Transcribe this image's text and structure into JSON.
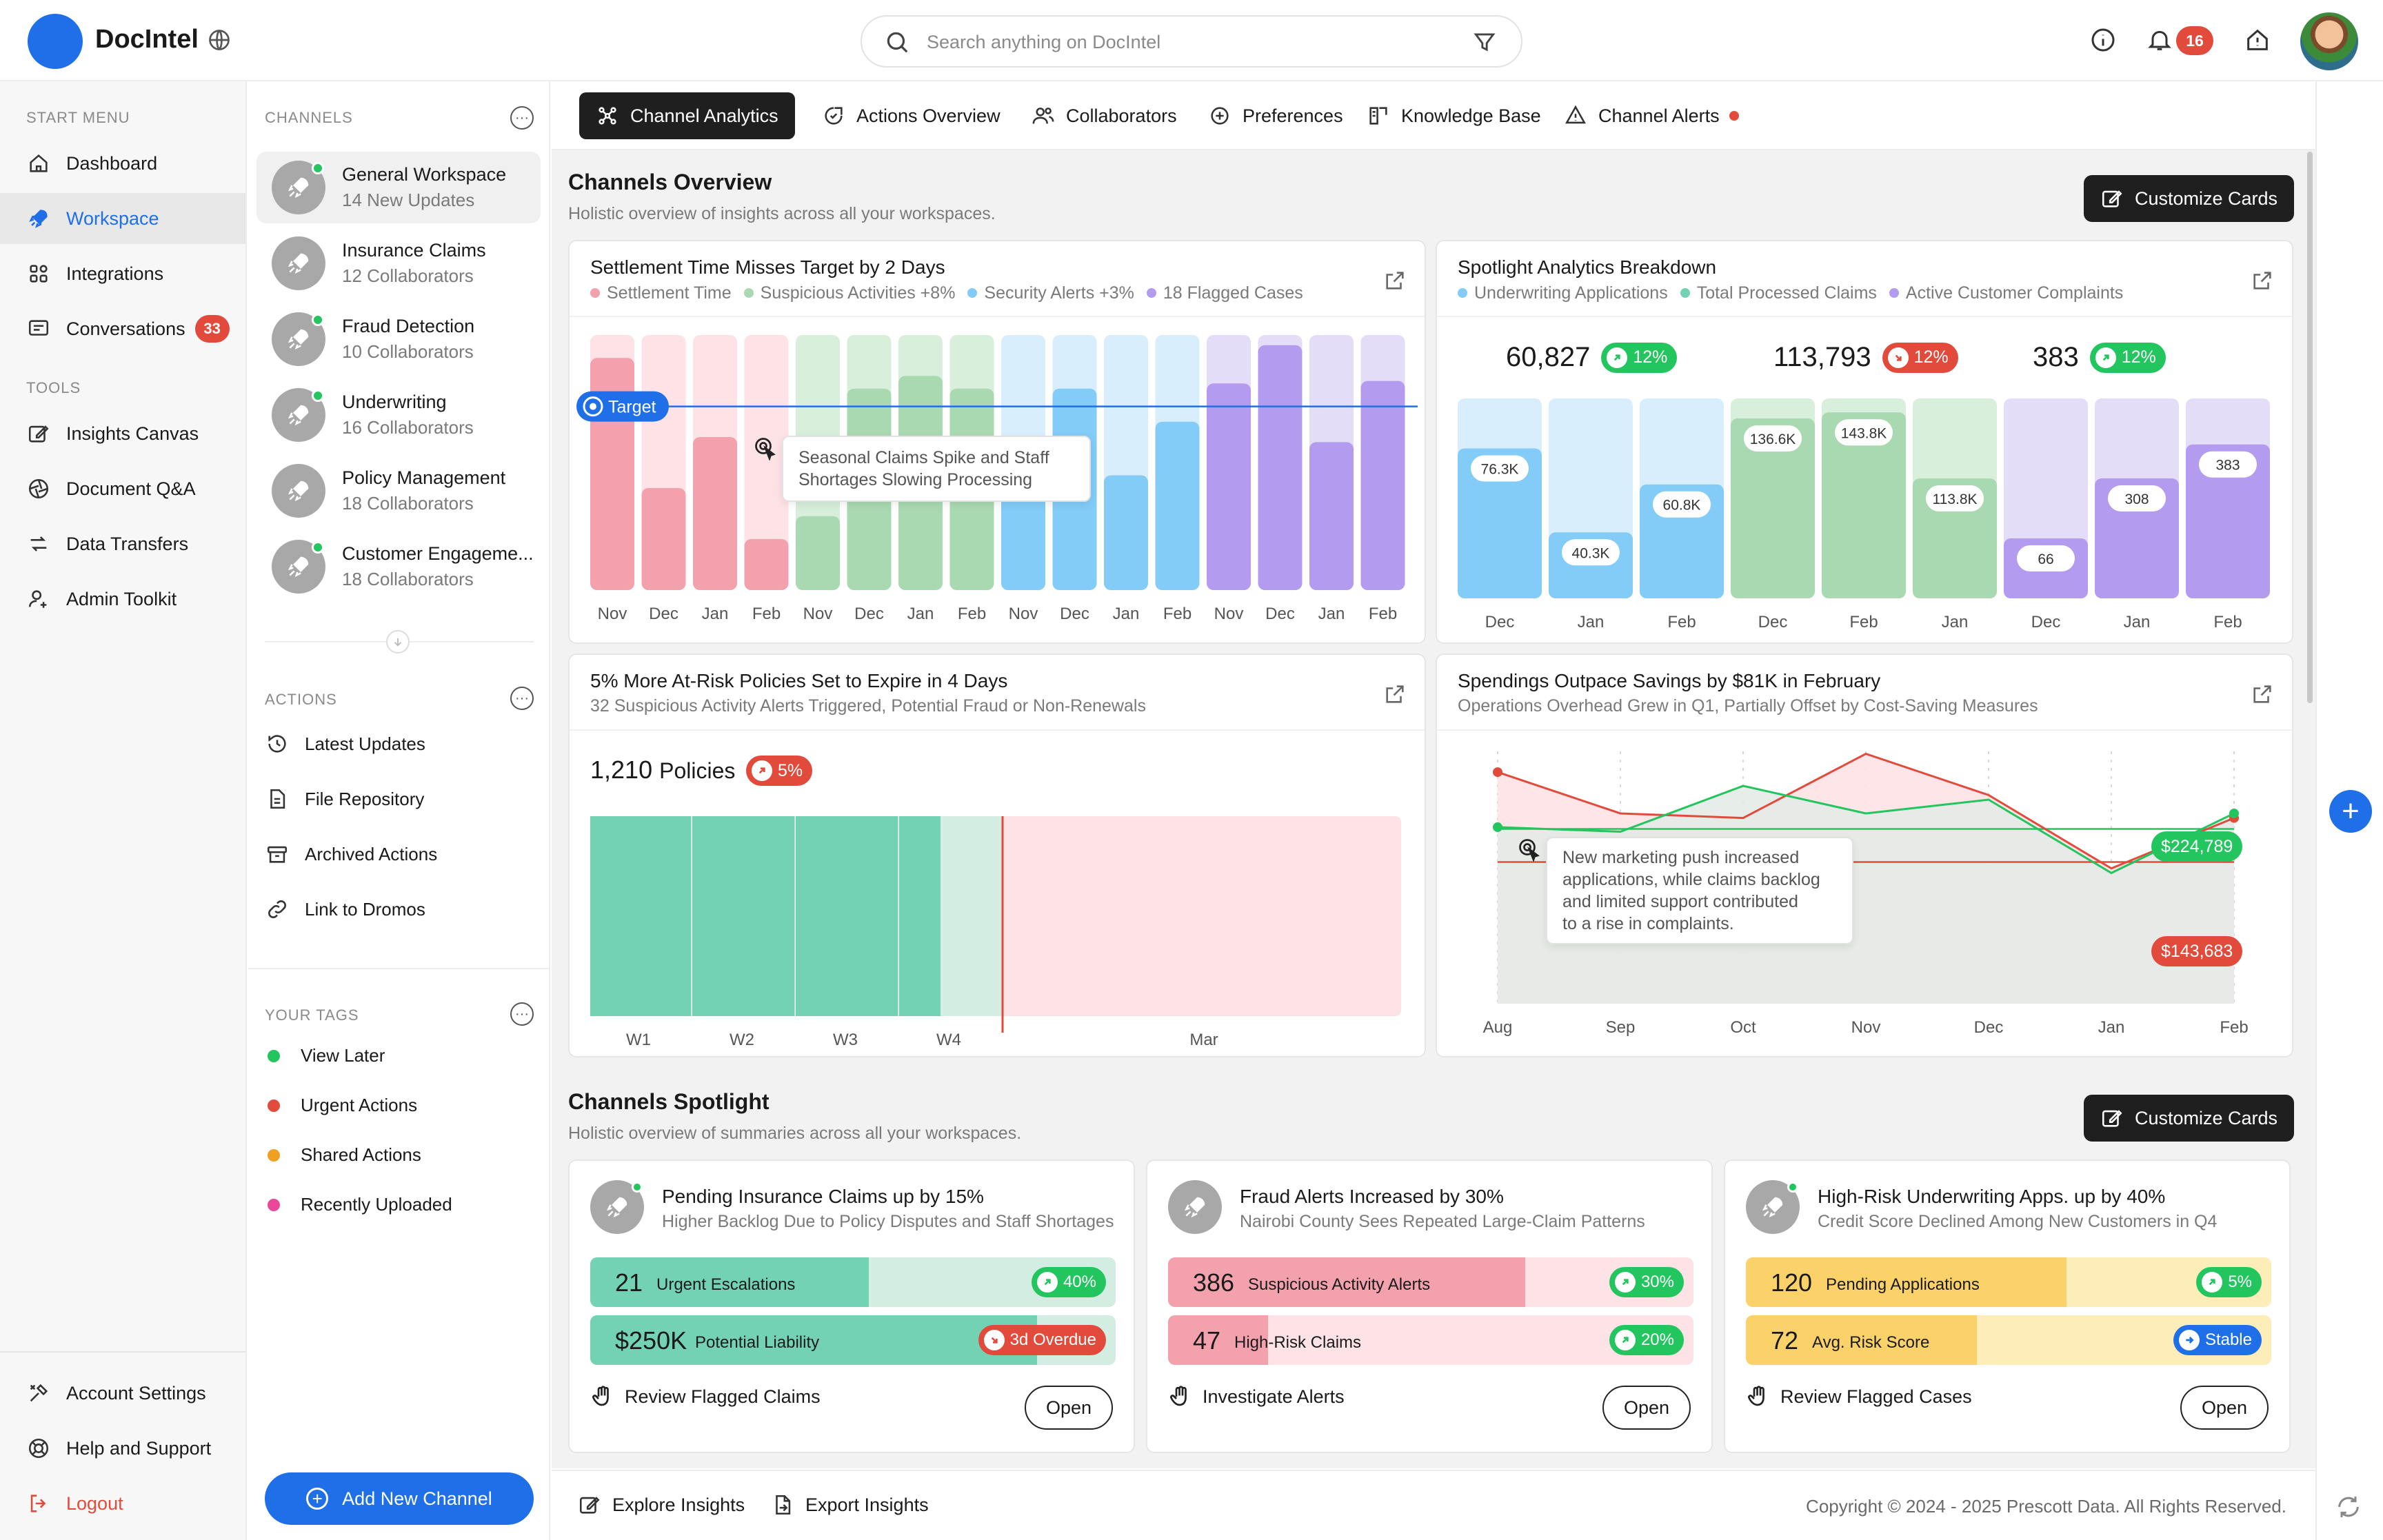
{
  "app": {
    "name": "DocIntel"
  },
  "search": {
    "placeholder": "Search anything on DocIntel"
  },
  "topbar": {
    "notifications_count": "16"
  },
  "sidebar": {
    "start_label": "START MENU",
    "start_items": [
      {
        "label": "Dashboard",
        "icon": "home-icon"
      },
      {
        "label": "Workspace",
        "icon": "rocket-icon",
        "active": true
      },
      {
        "label": "Integrations",
        "icon": "grid-icon"
      },
      {
        "label": "Conversations",
        "icon": "chat-icon",
        "badge": "33"
      }
    ],
    "tools_label": "TOOLS",
    "tools_items": [
      {
        "label": "Insights Canvas",
        "icon": "edit-icon"
      },
      {
        "label": "Document Q&A",
        "icon": "aperture-icon"
      },
      {
        "label": "Data Transfers",
        "icon": "transfer-icon"
      },
      {
        "label": "Admin Toolkit",
        "icon": "user-gear-icon"
      }
    ],
    "bottom_items": [
      {
        "label": "Account Settings",
        "icon": "tools-icon"
      },
      {
        "label": "Help and Support",
        "icon": "lifebuoy-icon"
      },
      {
        "label": "Logout",
        "icon": "logout-icon",
        "color": "#e24b3b"
      }
    ]
  },
  "channels": {
    "header": "CHANNELS",
    "items": [
      {
        "name": "General Workspace",
        "sub": "14 New Updates",
        "online": true
      },
      {
        "name": "Insurance Claims",
        "sub": "12 Collaborators",
        "online": false
      },
      {
        "name": "Fraud Detection",
        "sub": "10 Collaborators",
        "online": true
      },
      {
        "name": "Underwriting",
        "sub": "16 Collaborators",
        "online": true
      },
      {
        "name": "Policy Management",
        "sub": "18 Collaborators",
        "online": false
      },
      {
        "name": "Customer Engageme...",
        "sub": "18 Collaborators",
        "online": true
      }
    ],
    "actions_header": "ACTIONS",
    "actions": [
      {
        "label": "Latest Updates",
        "icon": "history-icon"
      },
      {
        "label": "File Repository",
        "icon": "file-icon"
      },
      {
        "label": "Archived Actions",
        "icon": "archive-icon"
      },
      {
        "label": "Link to Dromos",
        "icon": "link-icon"
      }
    ],
    "tags_header": "YOUR TAGS",
    "tags": [
      {
        "label": "View Later",
        "color": "#22c55e"
      },
      {
        "label": "Urgent Actions",
        "color": "#e24b3b"
      },
      {
        "label": "Shared Actions",
        "color": "#f0a020"
      },
      {
        "label": "Recently Uploaded",
        "color": "#ec4899"
      }
    ],
    "add_button": "Add New Channel"
  },
  "tabs": [
    {
      "label": "Channel Analytics",
      "icon": "nodes-icon",
      "active": true
    },
    {
      "label": "Actions Overview",
      "icon": "actions-icon"
    },
    {
      "label": "Collaborators",
      "icon": "users-icon"
    },
    {
      "label": "Preferences",
      "icon": "preferences-icon"
    },
    {
      "label": "Knowledge Base",
      "icon": "book-icon"
    },
    {
      "label": "Channel Alerts",
      "icon": "alert-icon",
      "dot": true
    }
  ],
  "overview": {
    "title": "Channels Overview",
    "subtitle": "Holistic overview of insights across all your workspaces.",
    "customize": "Customize Cards"
  },
  "card1": {
    "title": "Settlement Time Misses Target by 2 Days",
    "legend": [
      "Settlement Time",
      "Suspicious Activities +8%",
      "Security Alerts +3%",
      "18 Flagged Cases"
    ],
    "target_label": "Target",
    "tooltip": [
      "Seasonal Claims Spike and Staff",
      "Shortages Slowing Processing"
    ]
  },
  "card2": {
    "title": "Spotlight Analytics Breakdown",
    "legend": [
      "Underwriting Applications",
      "Total Processed Claims",
      "Active Customer Complaints"
    ],
    "kpis": [
      {
        "value": "60,827",
        "change": "12%",
        "dir": "up"
      },
      {
        "value": "113,793",
        "change": "12%",
        "dir": "down"
      },
      {
        "value": "383",
        "change": "12%",
        "dir": "up"
      }
    ]
  },
  "card3": {
    "title": "5% More At-Risk Policies Set to Expire in 4 Days",
    "subtitle": "32 Suspicious Activity Alerts Triggered, Potential Fraud or Non-Renewals",
    "kpi_value": "1,210",
    "kpi_unit": "Policies",
    "kpi_change": "5%"
  },
  "card4": {
    "title": "Spendings Outpace Savings by $81K in February",
    "subtitle": "Operations Overhead Grew in Q1, Partially Offset by Cost-Saving Measures",
    "tooltip": [
      "New marketing push increased",
      "applications, while claims backlog",
      "and limited support contributed",
      "to a rise in complaints."
    ],
    "label_green": "$224,789",
    "label_red": "$143,683"
  },
  "chart_data": [
    {
      "type": "bar",
      "title": "Settlement Time Misses Target by 2 Days",
      "categories": [
        "Nov",
        "Dec",
        "Jan",
        "Feb",
        "Nov",
        "Dec",
        "Jan",
        "Feb",
        "Nov",
        "Dec",
        "Jan",
        "Feb",
        "Nov",
        "Dec",
        "Jan",
        "Feb"
      ],
      "groups": [
        "Settlement Time",
        "Suspicious Activities +8%",
        "Security Alerts +3%",
        "18 Flagged Cases"
      ],
      "values": [
        91,
        40,
        60,
        20,
        29,
        79,
        84,
        79,
        40,
        79,
        45,
        66,
        81,
        96,
        58,
        82
      ],
      "target": 72,
      "ylim": [
        0,
        100
      ],
      "colors": [
        "#f2a1ad",
        "#a9d9b1",
        "#82ccf7",
        "#b39cf0"
      ],
      "bg_colors": [
        "#fde2e6",
        "#d8efdc",
        "#d8eefc",
        "#e4ddf7"
      ]
    },
    {
      "type": "bar",
      "title": "Spotlight Analytics Breakdown",
      "categories": [
        "Dec",
        "Jan",
        "Feb",
        "Dec",
        "Feb",
        "Jan",
        "Dec",
        "Jan",
        "Feb"
      ],
      "values": [
        76.3,
        40.3,
        60.8,
        136.6,
        143.8,
        113.8,
        66,
        308,
        383
      ],
      "labels": [
        "76.3K",
        "40.3K",
        "60.8K",
        "136.6K",
        "143.8K",
        "113.8K",
        "66",
        "308",
        "383"
      ],
      "fill": [
        0.75,
        0.33,
        0.57,
        0.9,
        0.93,
        0.6,
        0.3,
        0.6,
        0.77
      ],
      "colors": [
        "#82ccf7",
        "#d8eefc",
        "#a9d9b1",
        "#d8efdc",
        "#b39cf0",
        "#e4ddf7"
      ]
    },
    {
      "type": "bar",
      "title": "5% More At-Risk Policies Set to Expire in 4 Days",
      "categories": [
        "W1",
        "W2",
        "W3",
        "W4",
        "Mar"
      ],
      "values": [
        1,
        1,
        1,
        1,
        0.4
      ],
      "colors": {
        "filled": "#72d2b3",
        "light": "#d3ede3",
        "risk": "#fde2e6",
        "marker": "#e24b3b"
      }
    },
    {
      "type": "line",
      "title": "Spendings Outpace Savings by $81K in February",
      "categories": [
        "Aug",
        "Sep",
        "Oct",
        "Nov",
        "Dec",
        "Jan",
        "Feb"
      ],
      "series": [
        {
          "values": [
            230,
            185,
            180,
            250,
            205,
            125,
            180
          ],
          "color": "#e24b3b"
        },
        {
          "values": [
            170,
            165,
            215,
            185,
            200,
            120,
            185
          ],
          "color": "#22c55e"
        }
      ],
      "reference_lines": [
        {
          "value": 168,
          "label": "$224,789",
          "color": "#22c55e"
        },
        {
          "value": 132,
          "label": "$143,683",
          "color": "#e24b3b"
        }
      ]
    }
  ],
  "spotlight": {
    "title": "Channels Spotlight",
    "subtitle": "Holistic overview of summaries across all your workspaces.",
    "customize": "Customize Cards",
    "cards": [
      {
        "title": "Pending Insurance Claims up by 15%",
        "subtitle": "Higher Backlog Due to Policy Disputes and Staff Shortages",
        "online": true,
        "rows": [
          {
            "num": "21",
            "label": "Urgent Escalations",
            "pill": "40%",
            "dir": "up",
            "fill": 0.53,
            "color": "#72d2b3",
            "bg": "#d3ede3",
            "pill_color": "#22c55e"
          },
          {
            "num": "$250K",
            "label": "Potential Liability",
            "pill": "3d Overdue",
            "dir": "down",
            "fill": 0.85,
            "color": "#72d2b3",
            "bg": "#d3ede3",
            "pill_color": "#e24b3b"
          }
        ],
        "action": "Review Flagged Claims",
        "open": "Open"
      },
      {
        "title": "Fraud Alerts Increased by 30%",
        "subtitle": "Nairobi County Sees Repeated Large-Claim Patterns",
        "online": false,
        "rows": [
          {
            "num": "386",
            "label": "Suspicious Activity Alerts",
            "pill": "30%",
            "dir": "up",
            "fill": 0.68,
            "color": "#f2a1ad",
            "bg": "#fde2e6",
            "pill_color": "#22c55e"
          },
          {
            "num": "47",
            "label": "High-Risk Claims",
            "pill": "20%",
            "dir": "up",
            "fill": 0.19,
            "color": "#f2a1ad",
            "bg": "#fde2e6",
            "pill_color": "#22c55e"
          }
        ],
        "action": "Investigate Alerts",
        "open": "Open"
      },
      {
        "title": "High-Risk Underwriting Apps. up by 40%",
        "subtitle": "Credit Score Declined Among New Customers in Q4",
        "online": true,
        "rows": [
          {
            "num": "120",
            "label": "Pending Applications",
            "pill": "5%",
            "dir": "up",
            "fill": 0.61,
            "color": "#fbd26a",
            "bg": "#fdedb8",
            "pill_color": "#22c55e"
          },
          {
            "num": "72",
            "label": "Avg. Risk Score",
            "pill": "Stable",
            "dir": "right",
            "fill": 0.44,
            "color": "#fbd26a",
            "bg": "#fdedb8",
            "pill_color": "#1e6fe8"
          }
        ],
        "action": "Review Flagged Cases",
        "open": "Open"
      }
    ]
  },
  "footer": {
    "explore": "Explore Insights",
    "export": "Export Insights",
    "copyright": "Copyright © 2024 - 2025 Prescott Data. All Rights Reserved."
  }
}
